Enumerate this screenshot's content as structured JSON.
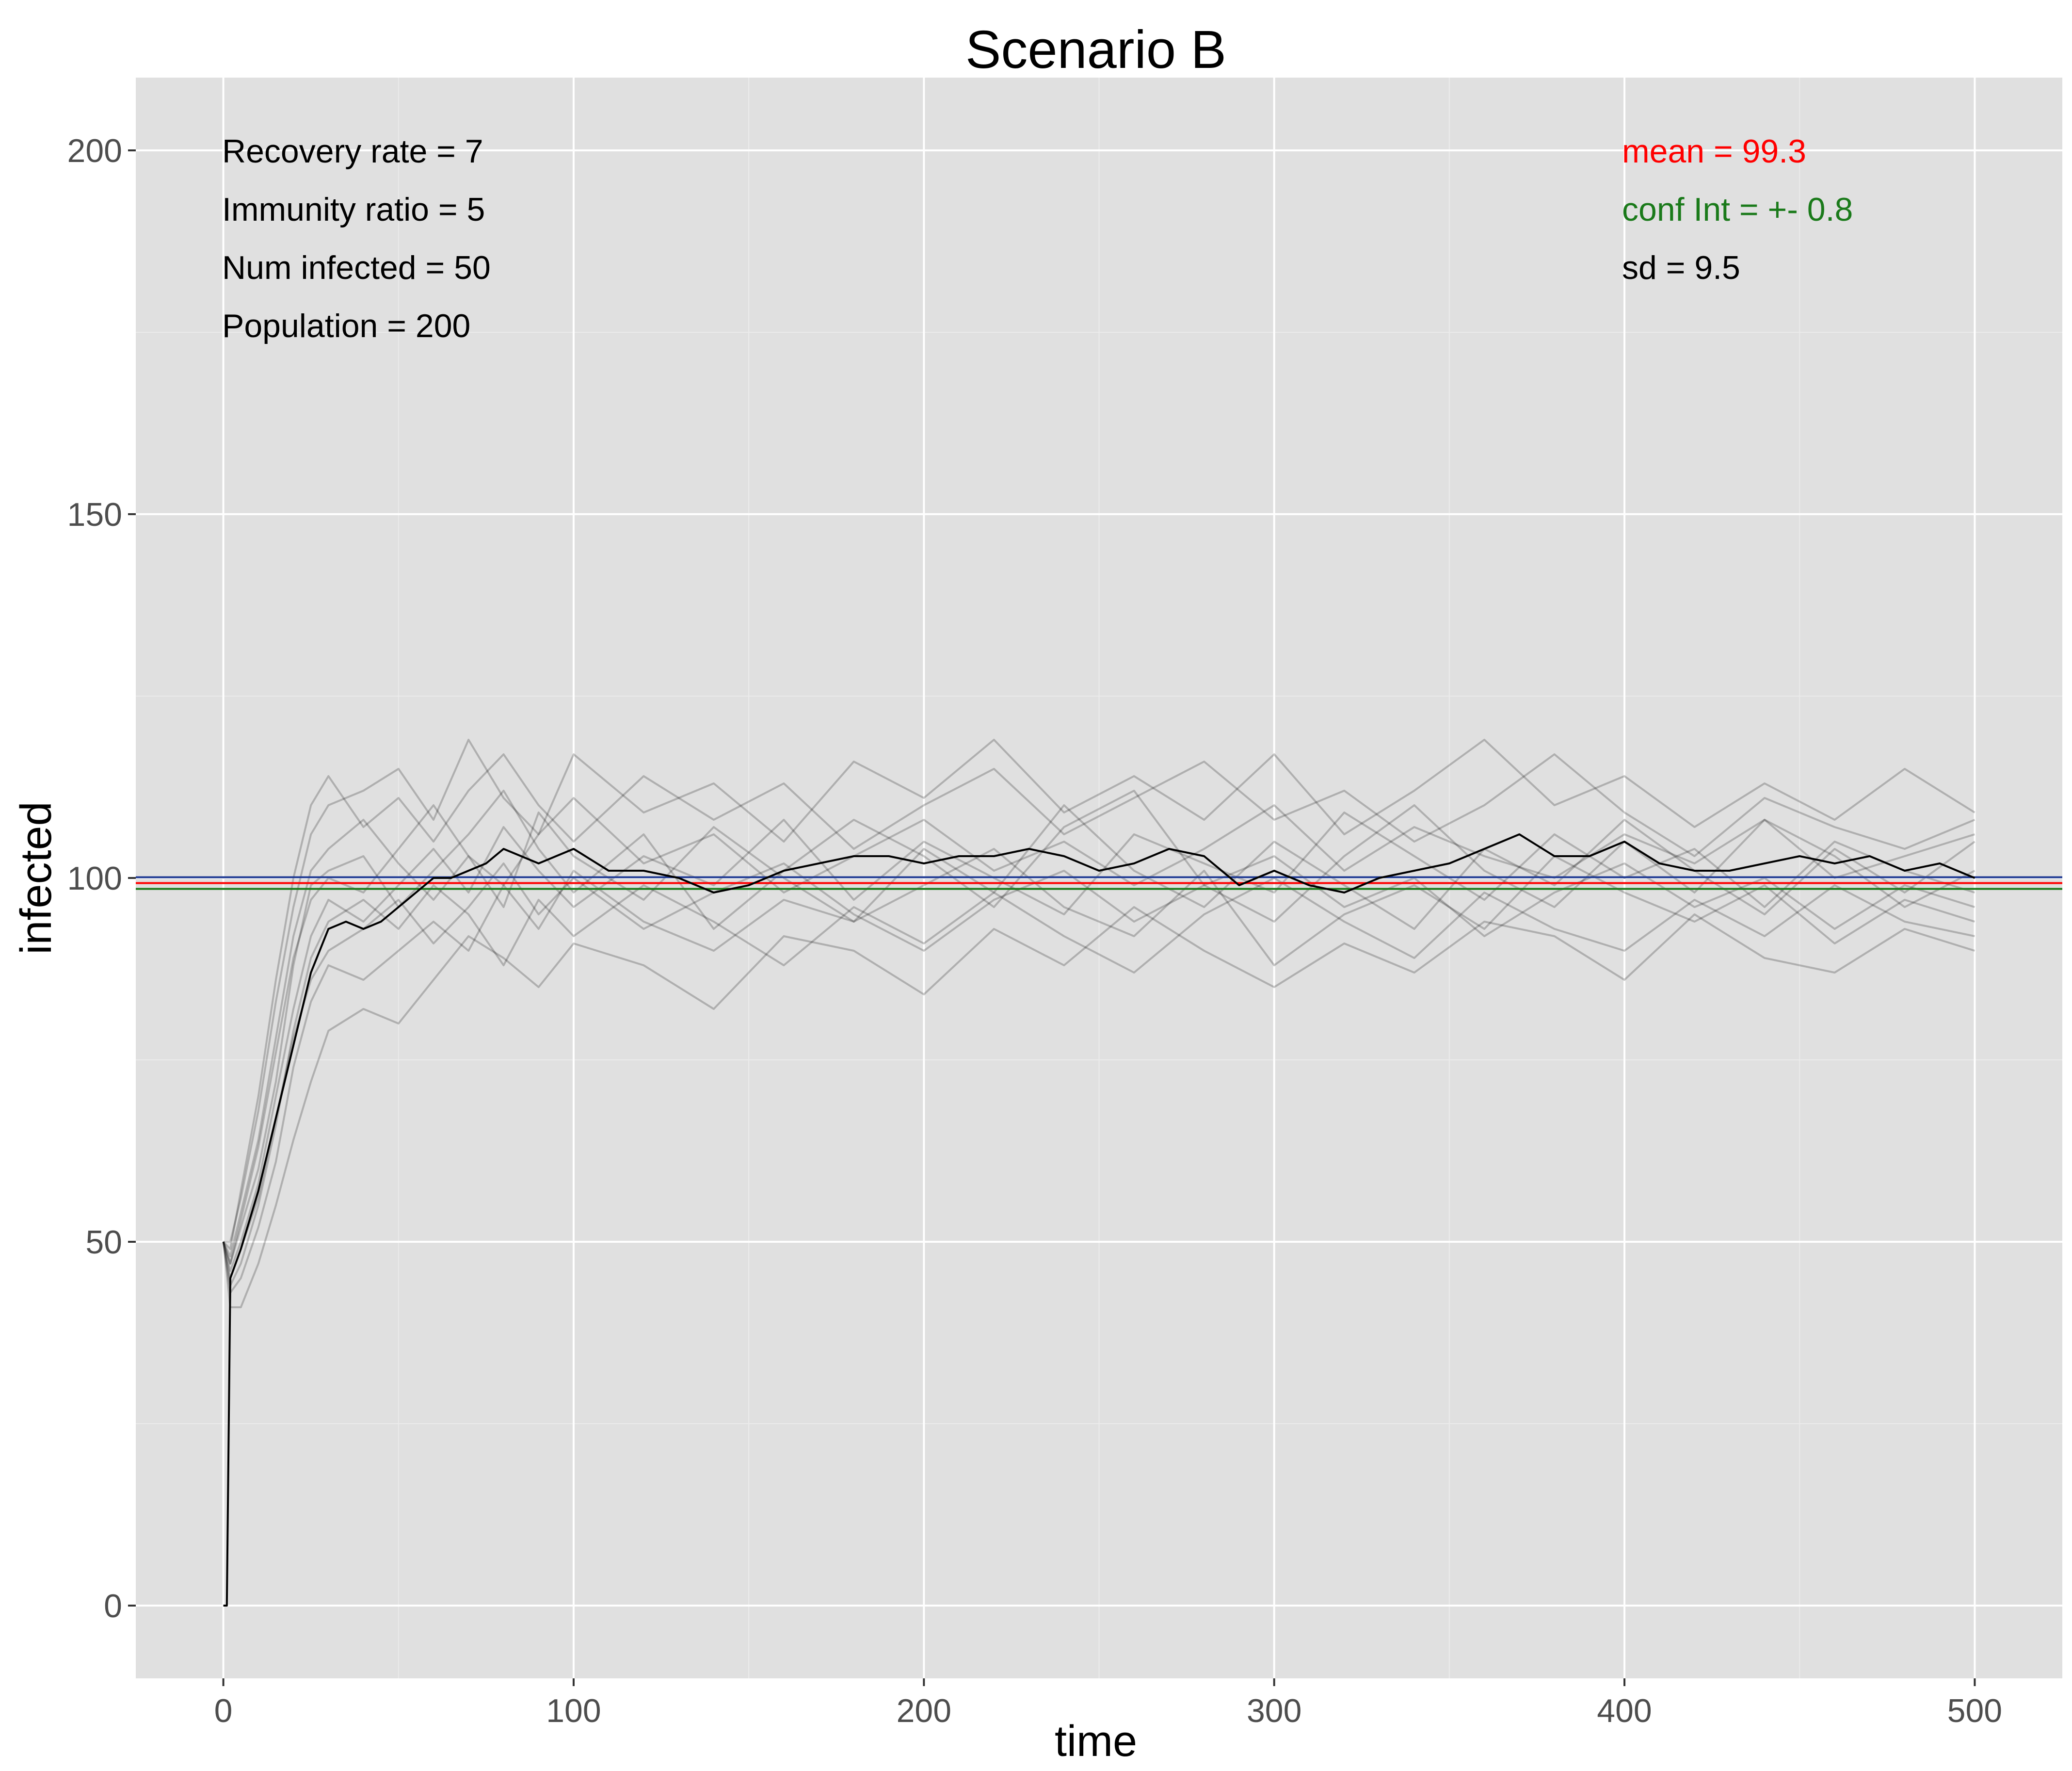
{
  "chart_data": {
    "type": "line",
    "title": "Scenario B",
    "xlabel": "time",
    "ylabel": "infected",
    "xlim": [
      -25,
      525
    ],
    "ylim": [
      -10,
      210
    ],
    "x_ticks": [
      0,
      100,
      200,
      300,
      400,
      500
    ],
    "y_ticks": [
      0,
      50,
      100,
      150,
      200
    ],
    "grid": true,
    "background": "#e0e0e0",
    "reference_lines": [
      {
        "y": 100.1,
        "color": "#1f3a93"
      },
      {
        "y": 99.3,
        "color": "#ff0000"
      },
      {
        "y": 98.5,
        "color": "#1a7a1a"
      }
    ],
    "mean_series": {
      "color": "#000000",
      "x": [
        0,
        1,
        2,
        5,
        10,
        15,
        20,
        25,
        30,
        35,
        40,
        45,
        50,
        55,
        60,
        65,
        70,
        75,
        80,
        90,
        100,
        110,
        120,
        130,
        140,
        150,
        160,
        170,
        180,
        190,
        200,
        210,
        220,
        230,
        240,
        250,
        260,
        270,
        280,
        290,
        300,
        310,
        320,
        330,
        340,
        350,
        360,
        370,
        380,
        390,
        400,
        410,
        420,
        430,
        440,
        450,
        460,
        470,
        480,
        490,
        500
      ],
      "y": [
        0,
        0,
        45,
        49,
        57,
        67,
        77,
        87,
        93,
        94,
        93,
        94,
        96,
        98,
        100,
        100,
        101,
        102,
        104,
        102,
        104,
        101,
        101,
        100,
        98,
        99,
        101,
        102,
        103,
        103,
        102,
        103,
        103,
        104,
        103,
        101,
        102,
        104,
        103,
        99,
        101,
        99,
        98,
        100,
        101,
        102,
        104,
        106,
        103,
        103,
        105,
        102,
        101,
        101,
        102,
        103,
        102,
        103,
        101,
        102,
        100
      ]
    },
    "series": [
      {
        "x": [
          0,
          2,
          5,
          10,
          15,
          20,
          25,
          30,
          40,
          50,
          60,
          70,
          80,
          90,
          100,
          120,
          140,
          160,
          180,
          200,
          220,
          240,
          260,
          280,
          300,
          320,
          340,
          360,
          380,
          400,
          420,
          440,
          460,
          480,
          500
        ],
        "y": [
          50,
          47,
          52,
          60,
          72,
          88,
          99,
          101,
          103,
          96,
          101,
          106,
          112,
          104,
          98,
          106,
          93,
          101,
          108,
          103,
          96,
          107,
          112,
          99,
          94,
          103,
          110,
          101,
          96,
          105,
          98,
          108,
          103,
          96,
          101
        ]
      },
      {
        "x": [
          0,
          2,
          5,
          10,
          15,
          20,
          25,
          30,
          40,
          50,
          60,
          70,
          80,
          90,
          100,
          120,
          140,
          160,
          180,
          200,
          220,
          240,
          260,
          280,
          300,
          320,
          340,
          360,
          380,
          400,
          420,
          440,
          460,
          480,
          500
        ],
        "y": [
          50,
          43,
          45,
          52,
          61,
          74,
          83,
          88,
          86,
          90,
          94,
          90,
          99,
          93,
          101,
          94,
          90,
          97,
          94,
          99,
          104,
          96,
          92,
          101,
          88,
          95,
          99,
          93,
          103,
          98,
          94,
          99,
          91,
          97,
          94
        ]
      },
      {
        "x": [
          0,
          2,
          5,
          10,
          15,
          20,
          25,
          30,
          40,
          50,
          60,
          70,
          80,
          90,
          100,
          120,
          140,
          160,
          180,
          200,
          220,
          240,
          260,
          280,
          300,
          320,
          340,
          360,
          380,
          400,
          420,
          440,
          460,
          480,
          500
        ],
        "y": [
          50,
          50,
          56,
          68,
          83,
          96,
          106,
          110,
          112,
          115,
          108,
          119,
          111,
          106,
          117,
          109,
          113,
          105,
          116,
          111,
          119,
          109,
          114,
          108,
          117,
          106,
          112,
          119,
          110,
          114,
          107,
          113,
          108,
          115,
          109
        ]
      },
      {
        "x": [
          0,
          2,
          5,
          10,
          15,
          20,
          25,
          30,
          40,
          50,
          60,
          70,
          80,
          90,
          100,
          120,
          140,
          160,
          180,
          200,
          220,
          240,
          260,
          280,
          300,
          320,
          340,
          360,
          380,
          400,
          420,
          440,
          460,
          480,
          500
        ],
        "y": [
          50,
          41,
          41,
          47,
          55,
          64,
          72,
          79,
          82,
          80,
          86,
          92,
          89,
          85,
          91,
          88,
          82,
          92,
          90,
          84,
          93,
          88,
          96,
          90,
          85,
          91,
          87,
          94,
          92,
          86,
          95,
          89,
          87,
          93,
          90
        ]
      },
      {
        "x": [
          0,
          2,
          5,
          10,
          15,
          20,
          25,
          30,
          40,
          50,
          60,
          70,
          80,
          90,
          100,
          120,
          140,
          160,
          180,
          200,
          220,
          240,
          260,
          280,
          300,
          320,
          340,
          360,
          380,
          400,
          420,
          440,
          460,
          480,
          500
        ],
        "y": [
          50,
          46,
          50,
          58,
          70,
          82,
          92,
          97,
          94,
          99,
          104,
          98,
          107,
          101,
          96,
          103,
          99,
          108,
          97,
          105,
          100,
          95,
          106,
          102,
          98,
          109,
          103,
          97,
          106,
          100,
          104,
          96,
          105,
          101,
          98
        ]
      },
      {
        "x": [
          0,
          2,
          5,
          10,
          15,
          20,
          25,
          30,
          40,
          50,
          60,
          70,
          80,
          90,
          100,
          120,
          140,
          160,
          180,
          200,
          220,
          240,
          260,
          280,
          300,
          320,
          340,
          360,
          380,
          400,
          420,
          440,
          460,
          480,
          500
        ],
        "y": [
          50,
          48,
          54,
          64,
          78,
          92,
          101,
          104,
          108,
          102,
          97,
          103,
          96,
          109,
          103,
          97,
          107,
          100,
          94,
          104,
          98,
          110,
          101,
          96,
          105,
          99,
          93,
          104,
          99,
          108,
          101,
          95,
          104,
          98,
          105
        ]
      },
      {
        "x": [
          0,
          2,
          5,
          10,
          15,
          20,
          25,
          30,
          40,
          50,
          60,
          70,
          80,
          90,
          100,
          120,
          140,
          160,
          180,
          200,
          220,
          240,
          260,
          280,
          300,
          320,
          340,
          360,
          380,
          400,
          420,
          440,
          460,
          480,
          500
        ],
        "y": [
          50,
          44,
          47,
          55,
          66,
          79,
          89,
          94,
          97,
          93,
          99,
          95,
          88,
          97,
          92,
          99,
          94,
          88,
          96,
          91,
          98,
          92,
          87,
          95,
          100,
          94,
          89,
          98,
          93,
          90,
          97,
          92,
          99,
          94,
          92
        ]
      },
      {
        "x": [
          0,
          2,
          5,
          10,
          15,
          20,
          25,
          30,
          40,
          50,
          60,
          70,
          80,
          90,
          100,
          120,
          140,
          160,
          180,
          200,
          220,
          240,
          260,
          280,
          300,
          320,
          340,
          360,
          380,
          400,
          420,
          440,
          460,
          480,
          500
        ],
        "y": [
          50,
          49,
          57,
          70,
          86,
          100,
          110,
          114,
          107,
          111,
          105,
          112,
          117,
          110,
          105,
          114,
          108,
          113,
          104,
          110,
          115,
          106,
          111,
          116,
          108,
          112,
          105,
          110,
          117,
          109,
          103,
          111,
          107,
          104,
          108
        ]
      },
      {
        "x": [
          0,
          2,
          5,
          10,
          15,
          20,
          25,
          30,
          40,
          50,
          60,
          70,
          80,
          90,
          100,
          120,
          140,
          160,
          180,
          200,
          220,
          240,
          260,
          280,
          300,
          320,
          340,
          360,
          380,
          400,
          420,
          440,
          460,
          480,
          500
        ],
        "y": [
          50,
          45,
          49,
          56,
          67,
          78,
          86,
          90,
          93,
          97,
          91,
          96,
          102,
          95,
          100,
          93,
          98,
          102,
          95,
          90,
          97,
          101,
          94,
          99,
          103,
          96,
          100,
          92,
          98,
          102,
          96,
          100,
          93,
          99,
          96
        ]
      },
      {
        "x": [
          0,
          2,
          5,
          10,
          15,
          20,
          25,
          30,
          40,
          50,
          60,
          70,
          80,
          90,
          100,
          120,
          140,
          160,
          180,
          200,
          220,
          240,
          260,
          280,
          300,
          320,
          340,
          360,
          380,
          400,
          420,
          440,
          460,
          480,
          500
        ],
        "y": [
          50,
          47,
          53,
          63,
          76,
          89,
          97,
          100,
          98,
          104,
          110,
          103,
          99,
          106,
          111,
          102,
          106,
          98,
          103,
          108,
          101,
          105,
          99,
          104,
          110,
          101,
          107,
          103,
          100,
          106,
          102,
          108,
          100,
          103,
          106
        ]
      }
    ],
    "annotations_left": [
      "Recovery rate = 7",
      "Immunity ratio = 5",
      "Num infected = 50",
      "Population = 200"
    ],
    "annotations_right": [
      {
        "text": "mean = 99.3",
        "color": "#ff0000"
      },
      {
        "text": "conf Int = +- 0.8",
        "color": "#1a7a1a"
      },
      {
        "text": "sd = 9.5",
        "color": "#000000"
      }
    ]
  }
}
